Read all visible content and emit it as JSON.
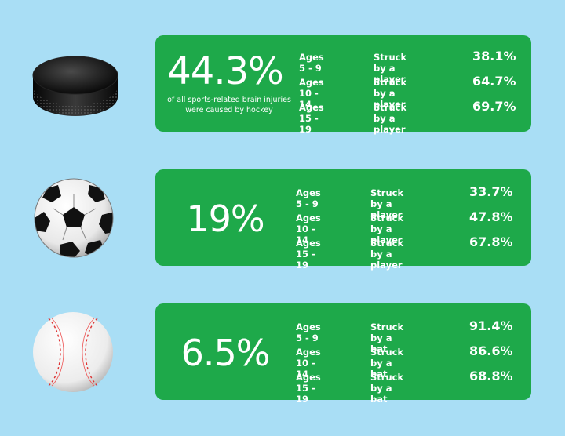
{
  "sections": [
    {
      "icon": "hockey-puck-icon",
      "percent": "44.3%",
      "caption": "of all sports-related brain injuries were caused by hockey",
      "rows": [
        {
          "age": "Ages 5 - 9",
          "cause": "Struck by a player",
          "value": "38.1%"
        },
        {
          "age": "Ages 10 - 14",
          "cause": "Struck by a player",
          "value": "64.7%"
        },
        {
          "age": "Ages 15 - 19",
          "cause": "Struck by a player",
          "value": "69.7%"
        }
      ]
    },
    {
      "icon": "soccer-ball-icon",
      "percent": "19%",
      "rows": [
        {
          "age": "Ages 5 - 9",
          "cause": "Struck by a player",
          "value": "33.7%"
        },
        {
          "age": "Ages 10 - 14",
          "cause": "Struck by a player",
          "value": "47.8%"
        },
        {
          "age": "Ages 15 - 19",
          "cause": "Struck by a player",
          "value": "67.8%"
        }
      ]
    },
    {
      "icon": "baseball-icon",
      "percent": "6.5%",
      "rows": [
        {
          "age": "Ages 5 - 9",
          "cause": "Struck by a bat",
          "value": "91.4%"
        },
        {
          "age": "Ages 10 - 14",
          "cause": "Struck by a bat",
          "value": "86.6%"
        },
        {
          "age": "Ages 15 - 19",
          "cause": "Struck by a bat",
          "value": "68.8%"
        }
      ]
    }
  ],
  "colors": {
    "background": "#a9def5",
    "card": "#1ea94a",
    "text": "#ffffff"
  }
}
